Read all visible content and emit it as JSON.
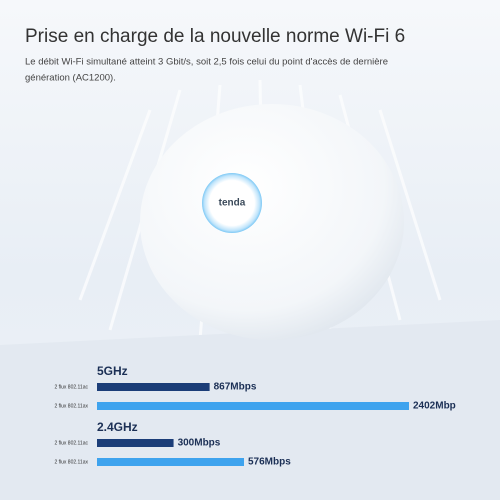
{
  "header": {
    "title": "Prise en charge de la nouvelle norme Wi-Fi 6",
    "subtitle": [
      "Le débit Wi-Fi simultané atteint 3 Gbit/s, soit 2,5 fois celui du point d'accès de dernière",
      "génération (AC1200)."
    ]
  },
  "logo": "tenda",
  "chart_data": [
    {
      "type": "bar",
      "title": "5GHz",
      "categories": [
        "2 flux 802.11ac",
        "2 flux 802.11ax"
      ],
      "values": [
        867,
        2402
      ],
      "value_labels": [
        "867Mbps",
        "2402Mbp"
      ],
      "colors": [
        "#1b3d78",
        "#3ea3ee"
      ]
    },
    {
      "type": "bar",
      "title": "2.4GHz",
      "categories": [
        "2 flux 802.11ac",
        "2 flux 802.11ax"
      ],
      "values": [
        300,
        576
      ],
      "value_labels": [
        "300Mbps",
        "576Mbps"
      ],
      "colors": [
        "#1b3d78",
        "#3ea3ee"
      ]
    }
  ]
}
